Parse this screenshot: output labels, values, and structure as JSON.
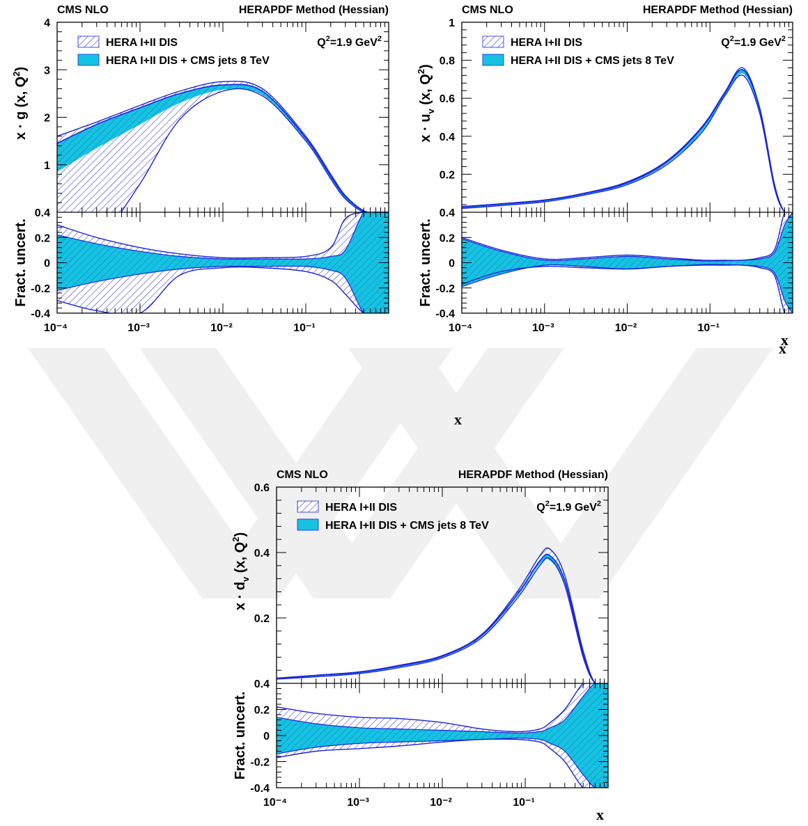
{
  "colors": {
    "hera_band": "#2a2fd6",
    "combined_band": "#16c2e2",
    "line": "#1c24d8",
    "axis": "#000000",
    "watermark": "#f0f0f0"
  },
  "figure": {
    "free_x_labels": [
      "x",
      "x"
    ]
  },
  "chart_data": [
    {
      "id": "gluon",
      "type": "area",
      "header_left": "CMS NLO",
      "header_right": "HERAPDF Method (Hessian)",
      "ylabel_main": "x · g (x, Q²)",
      "ylabel_ratio": "Fract. uncert.",
      "xlabel": "",
      "annotation": "Q²=1.9 GeV²",
      "x_scale": "log",
      "xlim": [
        0.0001,
        1
      ],
      "ylim_main": [
        0.0,
        4.0
      ],
      "ylim_ratio": [
        -0.4,
        0.4
      ],
      "xticks": [
        "10⁻⁴",
        "10⁻³",
        "10⁻²",
        "10⁻¹"
      ],
      "yticks_main": [
        "1",
        "2",
        "3",
        "4"
      ],
      "yticks_ratio": [
        "-0.4",
        "-0.2",
        "0",
        "0.2",
        "0.4"
      ],
      "legend": [
        "HERA I+II DIS",
        "HERA I+II DIS + CMS jets 8 TeV"
      ],
      "x": [
        0.0001,
        0.0003,
        0.001,
        0.003,
        0.01,
        0.03,
        0.1,
        0.2,
        0.3,
        0.5,
        0.7,
        1.0
      ],
      "hera_upper": [
        1.6,
        1.9,
        2.25,
        2.55,
        2.75,
        2.6,
        1.6,
        0.8,
        0.35,
        0.03,
        0.0,
        0.0
      ],
      "hera_lower": [
        -1.5,
        -0.7,
        0.6,
        1.95,
        2.55,
        2.45,
        1.5,
        0.7,
        0.28,
        0.0,
        0.0,
        0.0
      ],
      "comb_upper": [
        1.45,
        1.85,
        2.2,
        2.5,
        2.68,
        2.55,
        1.56,
        0.76,
        0.33,
        0.03,
        0.0,
        0.0
      ],
      "comb_lower": [
        0.85,
        1.35,
        1.85,
        2.3,
        2.58,
        2.47,
        1.52,
        0.72,
        0.29,
        0.0,
        0.0,
        0.0
      ],
      "ratio_hera_upper": [
        0.3,
        0.2,
        0.12,
        0.07,
        0.04,
        0.04,
        0.05,
        0.12,
        0.35,
        0.4,
        0.4,
        0.4
      ],
      "ratio_hera_lower": [
        -0.3,
        -0.38,
        -0.4,
        -0.1,
        -0.04,
        -0.04,
        -0.07,
        -0.14,
        -0.25,
        -0.4,
        -0.4,
        -0.4
      ],
      "ratio_comb_upper": [
        0.22,
        0.15,
        0.09,
        0.05,
        0.03,
        0.03,
        0.03,
        0.05,
        0.1,
        0.4,
        0.4,
        0.4
      ],
      "ratio_comb_lower": [
        -0.22,
        -0.15,
        -0.09,
        -0.05,
        -0.03,
        -0.03,
        -0.03,
        -0.06,
        -0.12,
        -0.4,
        -0.4,
        -0.4
      ]
    },
    {
      "id": "u_valence",
      "type": "area",
      "header_left": "CMS NLO",
      "header_right": "HERAPDF Method (Hessian)",
      "ylabel_main": "x · u_v (x, Q²)",
      "ylabel_ratio": "Fract. uncert.",
      "xlabel": "x",
      "annotation": "Q²=1.9 GeV²",
      "x_scale": "log",
      "xlim": [
        0.0001,
        1
      ],
      "ylim_main": [
        0.0,
        1.0
      ],
      "ylim_ratio": [
        -0.4,
        0.4
      ],
      "xticks": [
        "10⁻⁴",
        "10⁻³",
        "10⁻²",
        "10⁻¹"
      ],
      "yticks_main": [
        "0.2",
        "0.4",
        "0.6",
        "0.8",
        "1"
      ],
      "yticks_ratio": [
        "-0.4",
        "-0.2",
        "0",
        "0.2",
        "0.4"
      ],
      "legend": [
        "HERA I+II DIS",
        "HERA I+II DIS + CMS jets 8 TeV"
      ],
      "x": [
        0.0001,
        0.0003,
        0.001,
        0.003,
        0.01,
        0.03,
        0.08,
        0.15,
        0.25,
        0.4,
        0.6,
        0.8,
        1.0
      ],
      "hera_upper": [
        0.03,
        0.045,
        0.065,
        0.1,
        0.16,
        0.27,
        0.45,
        0.63,
        0.76,
        0.55,
        0.15,
        0.0,
        0.0
      ],
      "hera_lower": [
        0.02,
        0.035,
        0.055,
        0.09,
        0.145,
        0.25,
        0.42,
        0.61,
        0.72,
        0.52,
        0.13,
        0.0,
        0.0
      ],
      "comb_upper": [
        0.028,
        0.043,
        0.063,
        0.098,
        0.155,
        0.265,
        0.445,
        0.625,
        0.75,
        0.545,
        0.145,
        0.0,
        0.0
      ],
      "comb_lower": [
        0.022,
        0.037,
        0.057,
        0.092,
        0.148,
        0.255,
        0.425,
        0.612,
        0.73,
        0.525,
        0.135,
        0.0,
        0.0
      ],
      "ratio_hera_upper": [
        0.2,
        0.1,
        0.03,
        0.04,
        0.06,
        0.04,
        0.02,
        0.02,
        0.02,
        0.04,
        0.1,
        0.4,
        0.4
      ],
      "ratio_hera_lower": [
        -0.17,
        -0.07,
        -0.03,
        -0.04,
        -0.05,
        -0.03,
        -0.02,
        -0.02,
        -0.02,
        -0.04,
        -0.1,
        -0.4,
        -0.4
      ],
      "ratio_comb_upper": [
        0.19,
        0.09,
        0.02,
        0.03,
        0.05,
        0.03,
        0.015,
        0.015,
        0.02,
        0.03,
        0.08,
        0.3,
        0.4
      ],
      "ratio_comb_lower": [
        -0.19,
        -0.09,
        -0.02,
        -0.03,
        -0.05,
        -0.03,
        -0.015,
        -0.015,
        -0.02,
        -0.03,
        -0.08,
        -0.3,
        -0.4
      ]
    },
    {
      "id": "d_valence",
      "type": "area",
      "header_left": "CMS NLO",
      "header_right": "HERAPDF Method (Hessian)",
      "ylabel_main": "x · d_v (x, Q²)",
      "ylabel_ratio": "Fract. uncert.",
      "xlabel": "x",
      "annotation": "Q²=1.9 GeV²",
      "x_scale": "log",
      "xlim": [
        0.0001,
        1
      ],
      "ylim_main": [
        0.0,
        0.6
      ],
      "ylim_ratio": [
        -0.4,
        0.4
      ],
      "xticks": [
        "10⁻⁴",
        "10⁻³",
        "10⁻²",
        "10⁻¹"
      ],
      "yticks_main": [
        "0.2",
        "0.4",
        "0.6"
      ],
      "yticks_ratio": [
        "-0.4",
        "-0.2",
        "0",
        "0.2",
        "0.4"
      ],
      "legend": [
        "HERA I+II DIS",
        "HERA I+II DIS + CMS jets 8 TeV"
      ],
      "x": [
        0.0001,
        0.0003,
        0.001,
        0.003,
        0.01,
        0.03,
        0.08,
        0.15,
        0.2,
        0.3,
        0.5,
        0.7,
        1.0
      ],
      "hera_upper": [
        0.016,
        0.025,
        0.035,
        0.055,
        0.085,
        0.15,
        0.28,
        0.39,
        0.41,
        0.33,
        0.1,
        0.0,
        0.0
      ],
      "hera_lower": [
        0.013,
        0.02,
        0.03,
        0.048,
        0.078,
        0.14,
        0.26,
        0.36,
        0.38,
        0.3,
        0.08,
        0.0,
        0.0
      ],
      "comb_upper": [
        0.015,
        0.024,
        0.034,
        0.053,
        0.083,
        0.147,
        0.272,
        0.375,
        0.39,
        0.315,
        0.09,
        0.0,
        0.0
      ],
      "comb_lower": [
        0.014,
        0.022,
        0.031,
        0.05,
        0.08,
        0.143,
        0.265,
        0.365,
        0.375,
        0.305,
        0.085,
        0.0,
        0.0
      ],
      "ratio_hera_upper": [
        0.22,
        0.17,
        0.14,
        0.13,
        0.1,
        0.05,
        0.03,
        0.05,
        0.1,
        0.2,
        0.4,
        0.4,
        0.4
      ],
      "ratio_hera_lower": [
        -0.17,
        -0.12,
        -0.1,
        -0.08,
        -0.05,
        -0.03,
        -0.03,
        -0.05,
        -0.1,
        -0.2,
        -0.4,
        -0.4,
        -0.4
      ],
      "ratio_comb_upper": [
        0.14,
        0.09,
        0.06,
        0.05,
        0.04,
        0.03,
        0.02,
        0.03,
        0.06,
        0.12,
        0.3,
        0.4,
        0.4
      ],
      "ratio_comb_lower": [
        -0.14,
        -0.09,
        -0.06,
        -0.05,
        -0.04,
        -0.03,
        -0.02,
        -0.03,
        -0.06,
        -0.12,
        -0.3,
        -0.4,
        -0.4
      ]
    }
  ]
}
